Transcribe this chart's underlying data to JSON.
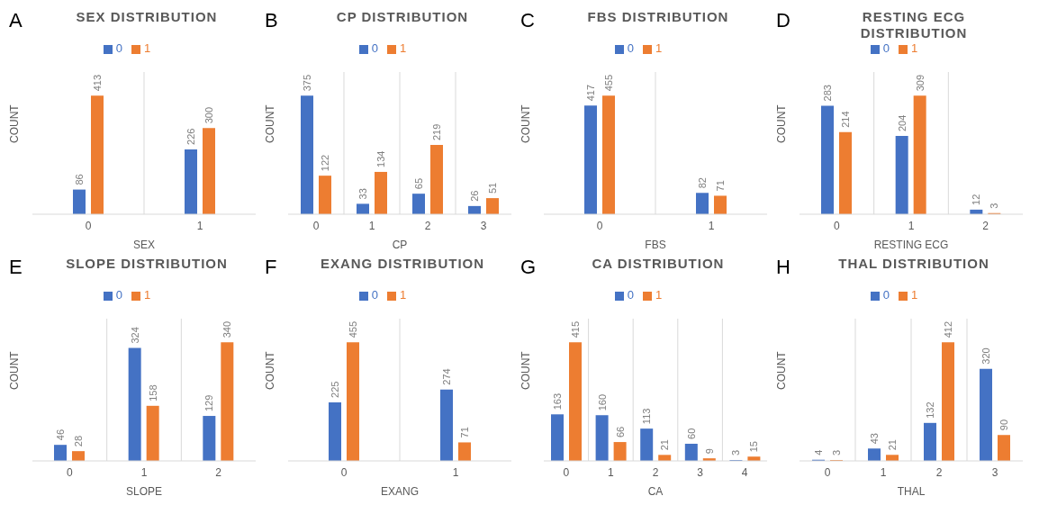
{
  "chart_data": [
    {
      "type": "bar",
      "title": "SEX DISTRIBUTION",
      "annotations": [
        "A"
      ],
      "xlabel": "SEX",
      "ylabel": "COUNT",
      "categories": [
        "0",
        "1"
      ],
      "legend": "top",
      "grid": "x",
      "data_labels": true,
      "series": [
        {
          "name": "0",
          "color": "#4472c4",
          "values": [
            86,
            226
          ]
        },
        {
          "name": "1",
          "color": "#ed7d31",
          "values": [
            413,
            300
          ]
        }
      ]
    },
    {
      "type": "bar",
      "title": "CP DISTRIBUTION",
      "annotations": [
        "B"
      ],
      "xlabel": "CP",
      "ylabel": "COUNT",
      "categories": [
        "0",
        "1",
        "2",
        "3"
      ],
      "legend": "top",
      "grid": "x",
      "data_labels": true,
      "series": [
        {
          "name": "0",
          "color": "#4472c4",
          "values": [
            375,
            33,
            65,
            26
          ]
        },
        {
          "name": "1",
          "color": "#ed7d31",
          "values": [
            122,
            134,
            219,
            51
          ]
        }
      ]
    },
    {
      "type": "bar",
      "title": "FBS DISTRIBUTION",
      "annotations": [
        "C"
      ],
      "xlabel": "FBS",
      "ylabel": "COUNT",
      "categories": [
        "0",
        "1"
      ],
      "legend": "top",
      "grid": "x",
      "data_labels": true,
      "series": [
        {
          "name": "0",
          "color": "#4472c4",
          "values": [
            417,
            82
          ]
        },
        {
          "name": "1",
          "color": "#ed7d31",
          "values": [
            455,
            71
          ]
        }
      ]
    },
    {
      "type": "bar",
      "title": "RESTING ECG DISTRIBUTION",
      "annotations": [
        "D"
      ],
      "xlabel": "RESTING ECG",
      "ylabel": "COUNT",
      "categories": [
        "0",
        "1",
        "2"
      ],
      "legend": "top",
      "grid": "x",
      "data_labels": true,
      "series": [
        {
          "name": "0",
          "color": "#4472c4",
          "values": [
            283,
            204,
            12
          ]
        },
        {
          "name": "1",
          "color": "#ed7d31",
          "values": [
            214,
            309,
            3
          ]
        }
      ]
    },
    {
      "type": "bar",
      "title": "SLOPE DISTRIBUTION",
      "annotations": [
        "E"
      ],
      "xlabel": "SLOPE",
      "ylabel": "COUNT",
      "categories": [
        "0",
        "1",
        "2"
      ],
      "legend": "top",
      "grid": "x",
      "data_labels": true,
      "series": [
        {
          "name": "0",
          "color": "#4472c4",
          "values": [
            46,
            324,
            129
          ]
        },
        {
          "name": "1",
          "color": "#ed7d31",
          "values": [
            28,
            158,
            340
          ]
        }
      ]
    },
    {
      "type": "bar",
      "title": "EXANG DISTRIBUTION",
      "annotations": [
        "F"
      ],
      "xlabel": "EXANG",
      "ylabel": "COUNT",
      "categories": [
        "0",
        "1"
      ],
      "legend": "top",
      "grid": "x",
      "data_labels": true,
      "series": [
        {
          "name": "0",
          "color": "#4472c4",
          "values": [
            225,
            274
          ]
        },
        {
          "name": "1",
          "color": "#ed7d31",
          "values": [
            455,
            71
          ]
        }
      ]
    },
    {
      "type": "bar",
      "title": "CA DISTRIBUTION",
      "annotations": [
        "G"
      ],
      "xlabel": "CA",
      "ylabel": "COUNT",
      "categories": [
        "0",
        "1",
        "2",
        "3",
        "4"
      ],
      "legend": "top",
      "grid": "x",
      "data_labels": true,
      "series": [
        {
          "name": "0",
          "color": "#4472c4",
          "values": [
            163,
            160,
            113,
            60,
            3
          ]
        },
        {
          "name": "1",
          "color": "#ed7d31",
          "values": [
            415,
            66,
            21,
            9,
            15
          ]
        }
      ]
    },
    {
      "type": "bar",
      "title": "THAL DISTRIBUTION",
      "annotations": [
        "H"
      ],
      "xlabel": "THAL",
      "ylabel": "COUNT",
      "categories": [
        "0",
        "1",
        "2",
        "3"
      ],
      "legend": "top",
      "grid": "x",
      "data_labels": true,
      "series": [
        {
          "name": "0",
          "color": "#4472c4",
          "values": [
            4,
            43,
            132,
            320
          ]
        },
        {
          "name": "1",
          "color": "#ed7d31",
          "values": [
            3,
            21,
            412,
            90
          ]
        }
      ]
    }
  ]
}
